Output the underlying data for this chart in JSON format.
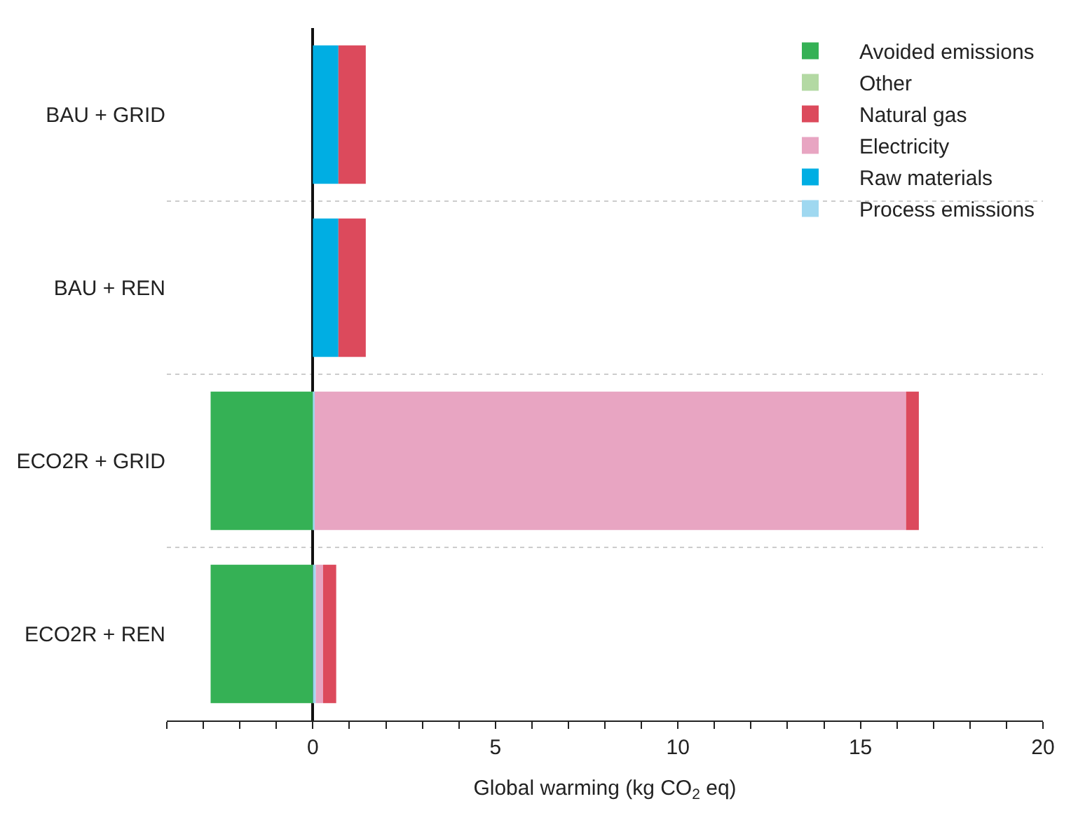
{
  "chart_data": {
    "type": "bar",
    "orientation": "horizontal",
    "stacked": true,
    "xlabel": "Global warming (kg CO$_{2}$ eq)",
    "categories": [
      "BAU + GRID",
      "BAU + REN",
      "ECO2R + GRID",
      "ECO2R + REN"
    ],
    "series": [
      {
        "name": "Process emissions",
        "color": "#9fd8f0",
        "values": [
          0,
          0,
          0.05,
          0.08
        ]
      },
      {
        "name": "Raw materials",
        "color": "#00aee3",
        "values": [
          0.7,
          0.7,
          0,
          0
        ]
      },
      {
        "name": "Electricity",
        "color": "#e8a5c2",
        "values": [
          0,
          0,
          16.2,
          0.2
        ]
      },
      {
        "name": "Natural gas",
        "color": "#dc4a5c",
        "values": [
          0.75,
          0.75,
          0.35,
          0.36
        ]
      },
      {
        "name": "Other",
        "color": "#b3d9a3",
        "values": [
          0,
          0,
          0,
          0
        ]
      },
      {
        "name": "Avoided emissions",
        "color": "#35b155",
        "values": [
          0,
          0,
          -2.8,
          -2.8
        ]
      }
    ],
    "xlim": [
      -4,
      20
    ],
    "xticks": [
      {
        "value": -4,
        "label": null
      },
      {
        "value": -3,
        "label": null
      },
      {
        "value": -2,
        "label": null
      },
      {
        "value": -1,
        "label": null
      },
      0,
      {
        "value": 1,
        "label": null
      },
      {
        "value": 2,
        "label": null
      },
      {
        "value": 3,
        "label": null
      },
      {
        "value": 4,
        "label": null
      },
      5,
      {
        "value": 6,
        "label": null
      },
      {
        "value": 7,
        "label": null
      },
      {
        "value": 8,
        "label": null
      },
      {
        "value": 9,
        "label": null
      },
      10,
      {
        "value": 11,
        "label": null
      },
      {
        "value": 12,
        "label": null
      },
      {
        "value": 13,
        "label": null
      },
      {
        "value": 14,
        "label": null
      },
      15,
      {
        "value": 16,
        "label": null
      },
      {
        "value": 17,
        "label": null
      },
      {
        "value": 18,
        "label": null
      },
      {
        "value": 19,
        "label": null
      },
      20
    ],
    "grid": "y",
    "legend": "top right"
  }
}
